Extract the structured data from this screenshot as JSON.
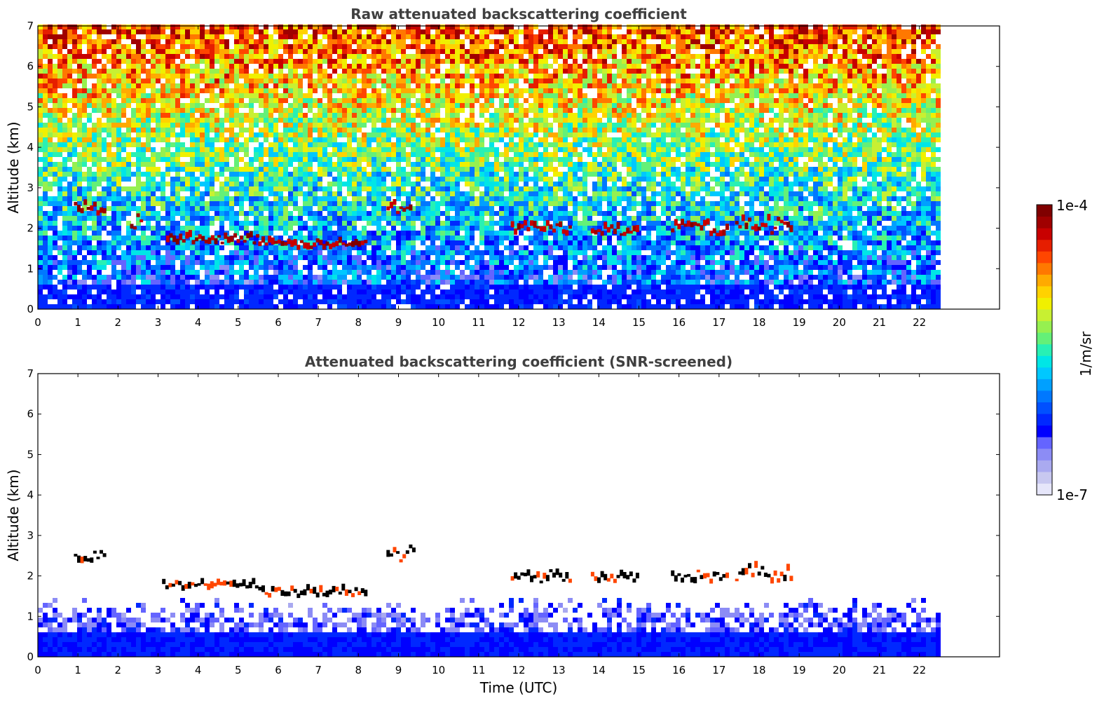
{
  "chart_data": [
    {
      "type": "heatmap",
      "title": "Raw attenuated backscattering coefficient",
      "xlabel": "",
      "ylabel": "Altitude (km)",
      "xlim": [
        0,
        24
      ],
      "ylim": [
        0,
        7
      ],
      "xticks": [
        0,
        1,
        2,
        3,
        4,
        5,
        6,
        7,
        8,
        9,
        10,
        11,
        12,
        13,
        14,
        15,
        16,
        17,
        18,
        19,
        20,
        21,
        22
      ],
      "yticks": [
        0,
        1,
        2,
        3,
        4,
        5,
        6,
        7
      ],
      "data_end_hour": 22.45,
      "colorscale": "jet",
      "background_noise": "increasing with altitude",
      "cloud_layers": [
        {
          "t": [
            0.9,
            1.7
          ],
          "alt": [
            2.3,
            2.6
          ]
        },
        {
          "t": [
            2.3,
            2.6
          ],
          "alt": [
            1.7,
            2.3
          ]
        },
        {
          "t": [
            3.2,
            5.5
          ],
          "alt": [
            1.6,
            1.8
          ]
        },
        {
          "t": [
            5.5,
            8.2
          ],
          "alt": [
            1.45,
            1.65
          ]
        },
        {
          "t": [
            8.7,
            9.3
          ],
          "alt": [
            2.3,
            2.7
          ]
        },
        {
          "t": [
            11.8,
            13.3
          ],
          "alt": [
            1.8,
            2.1
          ]
        },
        {
          "t": [
            13.8,
            15.0
          ],
          "alt": [
            1.8,
            2.0
          ]
        },
        {
          "t": [
            15.8,
            17.2
          ],
          "alt": [
            1.8,
            2.1
          ]
        },
        {
          "t": [
            17.4,
            18.8
          ],
          "alt": [
            1.8,
            2.2
          ]
        }
      ]
    },
    {
      "type": "heatmap",
      "title": "Attenuated backscattering coefficient (SNR-screened)",
      "xlabel": "Time (UTC)",
      "ylabel": "Altitude (km)",
      "xlim": [
        0,
        24
      ],
      "ylim": [
        0,
        7
      ],
      "xticks": [
        0,
        1,
        2,
        3,
        4,
        5,
        6,
        7,
        8,
        9,
        10,
        11,
        12,
        13,
        14,
        15,
        16,
        17,
        18,
        19,
        20,
        21,
        22
      ],
      "yticks": [
        0,
        1,
        2,
        3,
        4,
        5,
        6,
        7
      ],
      "data_end_hour": 22.45,
      "colorscale": "jet",
      "cloud_layers": [
        {
          "t": [
            0.9,
            1.7
          ],
          "alt": [
            2.3,
            2.6
          ]
        },
        {
          "t": [
            3.1,
            5.5
          ],
          "alt": [
            1.6,
            1.8
          ]
        },
        {
          "t": [
            5.5,
            8.2
          ],
          "alt": [
            1.45,
            1.65
          ]
        },
        {
          "t": [
            8.7,
            9.4
          ],
          "alt": [
            2.3,
            2.7
          ]
        },
        {
          "t": [
            11.8,
            13.3
          ],
          "alt": [
            1.8,
            2.1
          ]
        },
        {
          "t": [
            13.8,
            15.0
          ],
          "alt": [
            1.8,
            2.0
          ]
        },
        {
          "t": [
            15.8,
            17.2
          ],
          "alt": [
            1.8,
            2.1
          ]
        },
        {
          "t": [
            17.4,
            18.8
          ],
          "alt": [
            1.8,
            2.2
          ]
        }
      ]
    }
  ],
  "colorbar": {
    "label": "1/m/sr",
    "max_label": "1e-4",
    "min_label": "1e-7",
    "scale": "log",
    "colors": [
      "#e6e6fa",
      "#c8c8f0",
      "#aaaaf0",
      "#8c8cf5",
      "#6464ff",
      "#0000ff",
      "#0028ff",
      "#0050ff",
      "#0078ff",
      "#00a0ff",
      "#00c8ff",
      "#00e6e6",
      "#28f0b4",
      "#64f078",
      "#96f050",
      "#c8f032",
      "#f0f000",
      "#ffd200",
      "#ffaa00",
      "#ff7800",
      "#ff4600",
      "#e61e00",
      "#c80000",
      "#a00000",
      "#800000"
    ]
  }
}
